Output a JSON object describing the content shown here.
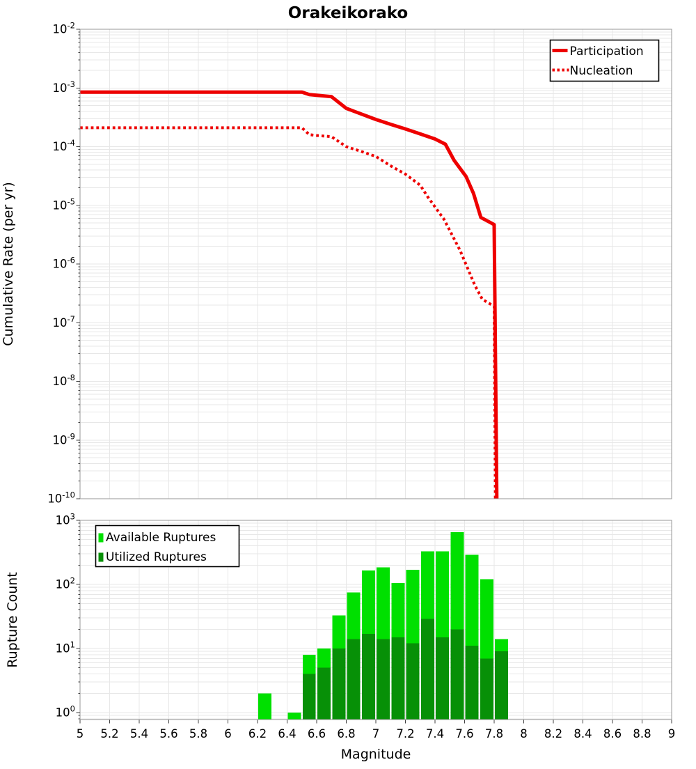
{
  "title": "Orakeikorako",
  "axes": {
    "xlabel": "Magnitude",
    "top_ylabel": "Cumulative Rate (per yr)",
    "bottom_ylabel": "Rupture Count"
  },
  "x_ticks": [
    {
      "value": 5.0,
      "label": "5"
    },
    {
      "value": 5.2,
      "label": "5.2"
    },
    {
      "value": 5.4,
      "label": "5.4"
    },
    {
      "value": 5.6,
      "label": "5.6"
    },
    {
      "value": 5.8,
      "label": "5.8"
    },
    {
      "value": 6.0,
      "label": "6"
    },
    {
      "value": 6.2,
      "label": "6.2"
    },
    {
      "value": 6.4,
      "label": "6.4"
    },
    {
      "value": 6.6,
      "label": "6.6"
    },
    {
      "value": 6.8,
      "label": "6.8"
    },
    {
      "value": 7.0,
      "label": "7"
    },
    {
      "value": 7.2,
      "label": "7.2"
    },
    {
      "value": 7.4,
      "label": "7.4"
    },
    {
      "value": 7.6,
      "label": "7.6"
    },
    {
      "value": 7.8,
      "label": "7.8"
    },
    {
      "value": 8.0,
      "label": "8"
    },
    {
      "value": 8.2,
      "label": "8.2"
    },
    {
      "value": 8.4,
      "label": "8.4"
    },
    {
      "value": 8.6,
      "label": "8.6"
    },
    {
      "value": 8.8,
      "label": "8.8"
    },
    {
      "value": 9.0,
      "label": "9"
    }
  ],
  "chart_data": [
    {
      "type": "line",
      "title": "Orakeikorako",
      "xlabel": "Magnitude",
      "ylabel": "Cumulative Rate (per yr)",
      "xlim": [
        5,
        9
      ],
      "yscale": "log",
      "ylim": [
        1e-10,
        0.01
      ],
      "y_tick_exponents": [
        -2,
        -3,
        -4,
        -5,
        -6,
        -7,
        -8,
        -9,
        -10
      ],
      "grid": true,
      "legend_position": "top-right",
      "series": [
        {
          "name": "Participation",
          "color": "#ee0000",
          "line_style": "solid",
          "line_width": 5,
          "points": [
            [
              5.0,
              0.00085
            ],
            [
              6.5,
              0.00085
            ],
            [
              6.55,
              0.00077
            ],
            [
              6.6,
              0.00075
            ],
            [
              6.7,
              0.00071
            ],
            [
              6.8,
              0.00045
            ],
            [
              6.9,
              0.00036
            ],
            [
              7.0,
              0.00029
            ],
            [
              7.1,
              0.00024
            ],
            [
              7.2,
              0.0002
            ],
            [
              7.3,
              0.000165
            ],
            [
              7.4,
              0.000135
            ],
            [
              7.47,
              0.00011
            ],
            [
              7.53,
              5.8e-05
            ],
            [
              7.61,
              3.1e-05
            ],
            [
              7.66,
              1.6e-05
            ],
            [
              7.71,
              6.2e-06
            ],
            [
              7.8,
              4.7e-06
            ],
            [
              7.818,
              1e-10
            ]
          ]
        },
        {
          "name": "Nucleation",
          "color": "#ee0000",
          "line_style": "dotted",
          "line_width": 4,
          "points": [
            [
              5.0,
              0.00021
            ],
            [
              6.5,
              0.00021
            ],
            [
              6.55,
              0.00016
            ],
            [
              6.6,
              0.000155
            ],
            [
              6.7,
              0.000148
            ],
            [
              6.8,
              0.0001
            ],
            [
              6.9,
              8.3e-05
            ],
            [
              7.0,
              6.8e-05
            ],
            [
              7.1,
              4.7e-05
            ],
            [
              7.2,
              3.4e-05
            ],
            [
              7.3,
              2.2e-05
            ],
            [
              7.35,
              1.4e-05
            ],
            [
              7.46,
              5.8e-06
            ],
            [
              7.57,
              1.7e-06
            ],
            [
              7.67,
              4.3e-07
            ],
            [
              7.72,
              2.5e-07
            ],
            [
              7.8,
              1.9e-07
            ],
            [
              7.808,
              1e-10
            ]
          ]
        }
      ]
    },
    {
      "type": "bar",
      "xlabel": "Magnitude",
      "ylabel": "Rupture Count",
      "xlim": [
        5,
        9
      ],
      "yscale": "log",
      "ylim": [
        0.78,
        1000
      ],
      "y_tick_exponents": [
        3,
        2,
        1,
        0
      ],
      "bin_width": 0.1,
      "grid": true,
      "legend_position": "top-left",
      "series": [
        {
          "name": "Available Ruptures",
          "color": "#00e000",
          "bins": [
            [
              6.2,
              2
            ],
            [
              6.4,
              1
            ],
            [
              6.5,
              8
            ],
            [
              6.6,
              10
            ],
            [
              6.7,
              33
            ],
            [
              6.8,
              75
            ],
            [
              6.9,
              165
            ],
            [
              7.0,
              185
            ],
            [
              7.1,
              105
            ],
            [
              7.2,
              170
            ],
            [
              7.3,
              330
            ],
            [
              7.4,
              330
            ],
            [
              7.5,
              650
            ],
            [
              7.6,
              290
            ],
            [
              7.7,
              120
            ],
            [
              7.8,
              14
            ]
          ]
        },
        {
          "name": "Utilized Ruptures",
          "color": "#079007",
          "bins": [
            [
              6.2,
              0
            ],
            [
              6.4,
              0
            ],
            [
              6.5,
              4
            ],
            [
              6.6,
              5
            ],
            [
              6.7,
              10
            ],
            [
              6.8,
              14
            ],
            [
              6.9,
              17
            ],
            [
              7.0,
              14
            ],
            [
              7.1,
              15
            ],
            [
              7.2,
              12
            ],
            [
              7.3,
              29
            ],
            [
              7.4,
              15
            ],
            [
              7.5,
              20
            ],
            [
              7.6,
              11
            ],
            [
              7.7,
              7
            ],
            [
              7.8,
              9
            ]
          ]
        }
      ]
    }
  ]
}
